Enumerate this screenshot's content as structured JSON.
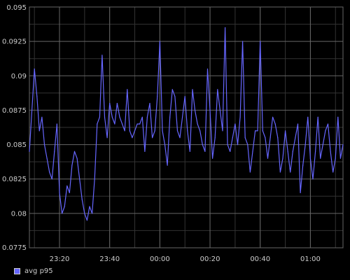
{
  "chart_data": {
    "type": "line",
    "title": "",
    "xlabel": "",
    "ylabel": "",
    "ylim": [
      0.0775,
      0.095
    ],
    "xlim": [
      "23:08",
      "01:13"
    ],
    "y_ticks": [
      "0.0775",
      "0.08",
      "0.0825",
      "0.085",
      "0.0875",
      "0.09",
      "0.0925",
      "0.095"
    ],
    "x_ticks": [
      "23:20",
      "23:40",
      "00:00",
      "00:20",
      "00:40",
      "01:00"
    ],
    "grid": true,
    "legend_position": "bottom-left",
    "background_color": "#000000",
    "grid_color": "#666666",
    "text_color": "#cccccc",
    "series": [
      {
        "name": "avg p95",
        "color": "#6666ff",
        "x": [
          "23:08",
          "23:09",
          "23:10",
          "23:11",
          "23:12",
          "23:13",
          "23:14",
          "23:15",
          "23:16",
          "23:17",
          "23:18",
          "23:19",
          "23:20",
          "23:21",
          "23:22",
          "23:23",
          "23:24",
          "23:25",
          "23:26",
          "23:27",
          "23:28",
          "23:29",
          "23:30",
          "23:31",
          "23:32",
          "23:33",
          "23:34",
          "23:35",
          "23:36",
          "23:37",
          "23:38",
          "23:39",
          "23:40",
          "23:41",
          "23:42",
          "23:43",
          "23:44",
          "23:45",
          "23:46",
          "23:47",
          "23:48",
          "23:49",
          "23:50",
          "23:51",
          "23:52",
          "23:53",
          "23:54",
          "23:55",
          "23:56",
          "23:57",
          "23:58",
          "23:59",
          "00:00",
          "00:01",
          "00:02",
          "00:03",
          "00:04",
          "00:05",
          "00:06",
          "00:07",
          "00:08",
          "00:09",
          "00:10",
          "00:11",
          "00:12",
          "00:13",
          "00:14",
          "00:15",
          "00:16",
          "00:17",
          "00:18",
          "00:19",
          "00:20",
          "00:21",
          "00:22",
          "00:23",
          "00:24",
          "00:25",
          "00:26",
          "00:27",
          "00:28",
          "00:29",
          "00:30",
          "00:31",
          "00:32",
          "00:33",
          "00:34",
          "00:35",
          "00:36",
          "00:37",
          "00:38",
          "00:39",
          "00:40",
          "00:41",
          "00:42",
          "00:43",
          "00:44",
          "00:45",
          "00:46",
          "00:47",
          "00:48",
          "00:49",
          "00:50",
          "00:51",
          "00:52",
          "00:53",
          "00:54",
          "00:55",
          "00:56",
          "00:57",
          "00:58",
          "00:59",
          "01:00",
          "01:01",
          "01:02",
          "01:03",
          "01:04",
          "01:05",
          "01:06",
          "01:07",
          "01:08",
          "01:09",
          "01:10",
          "01:11",
          "01:12",
          "01:13"
        ],
        "values": [
          0.0845,
          0.0875,
          0.0905,
          0.0885,
          0.086,
          0.087,
          0.085,
          0.084,
          0.083,
          0.0825,
          0.0845,
          0.0865,
          0.0815,
          0.08,
          0.0805,
          0.082,
          0.0815,
          0.0835,
          0.0845,
          0.084,
          0.0825,
          0.081,
          0.08,
          0.0795,
          0.0805,
          0.08,
          0.0825,
          0.0865,
          0.087,
          0.0915,
          0.087,
          0.0855,
          0.088,
          0.087,
          0.0865,
          0.088,
          0.087,
          0.0865,
          0.086,
          0.089,
          0.086,
          0.0855,
          0.086,
          0.0865,
          0.0865,
          0.087,
          0.0845,
          0.087,
          0.088,
          0.0855,
          0.086,
          0.0885,
          0.0925,
          0.086,
          0.085,
          0.0835,
          0.087,
          0.089,
          0.0885,
          0.086,
          0.0855,
          0.087,
          0.0885,
          0.086,
          0.0845,
          0.089,
          0.0875,
          0.0865,
          0.086,
          0.085,
          0.0845,
          0.0905,
          0.0875,
          0.084,
          0.0855,
          0.089,
          0.0875,
          0.086,
          0.0935,
          0.085,
          0.0845,
          0.0855,
          0.0865,
          0.085,
          0.087,
          0.0925,
          0.0855,
          0.085,
          0.083,
          0.0845,
          0.086,
          0.086,
          0.0925,
          0.086,
          0.0855,
          0.084,
          0.0855,
          0.087,
          0.0865,
          0.0855,
          0.083,
          0.084,
          0.086,
          0.0845,
          0.083,
          0.0845,
          0.0855,
          0.0865,
          0.0815,
          0.0835,
          0.085,
          0.087,
          0.084,
          0.0825,
          0.0845,
          0.087,
          0.084,
          0.085,
          0.086,
          0.0865,
          0.0845,
          0.083,
          0.084,
          0.087,
          0.084,
          0.085
        ]
      }
    ]
  }
}
